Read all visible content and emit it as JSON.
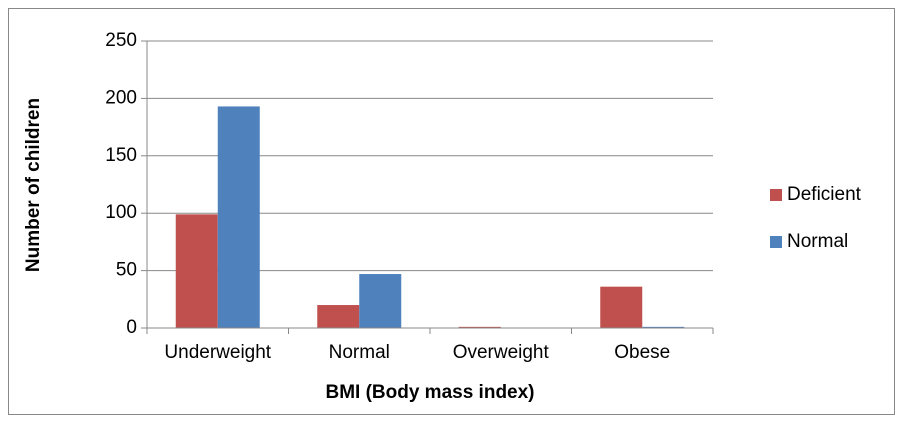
{
  "chart_data": {
    "type": "bar",
    "x_label": "BMI (Body mass index)",
    "y_label": "Number of children",
    "categories": [
      "Underweight",
      "Normal",
      "Overweight",
      "Obese"
    ],
    "series": [
      {
        "name": "Deficient",
        "color": "#c0504d",
        "values": [
          99,
          20,
          1,
          36
        ]
      },
      {
        "name": "Normal",
        "color": "#4f81bd",
        "values": [
          193,
          47,
          0,
          1
        ]
      }
    ],
    "ylim": [
      0,
      250
    ],
    "yticks": [
      0,
      50,
      100,
      150,
      200,
      250
    ],
    "grid": true,
    "legend": "right"
  }
}
